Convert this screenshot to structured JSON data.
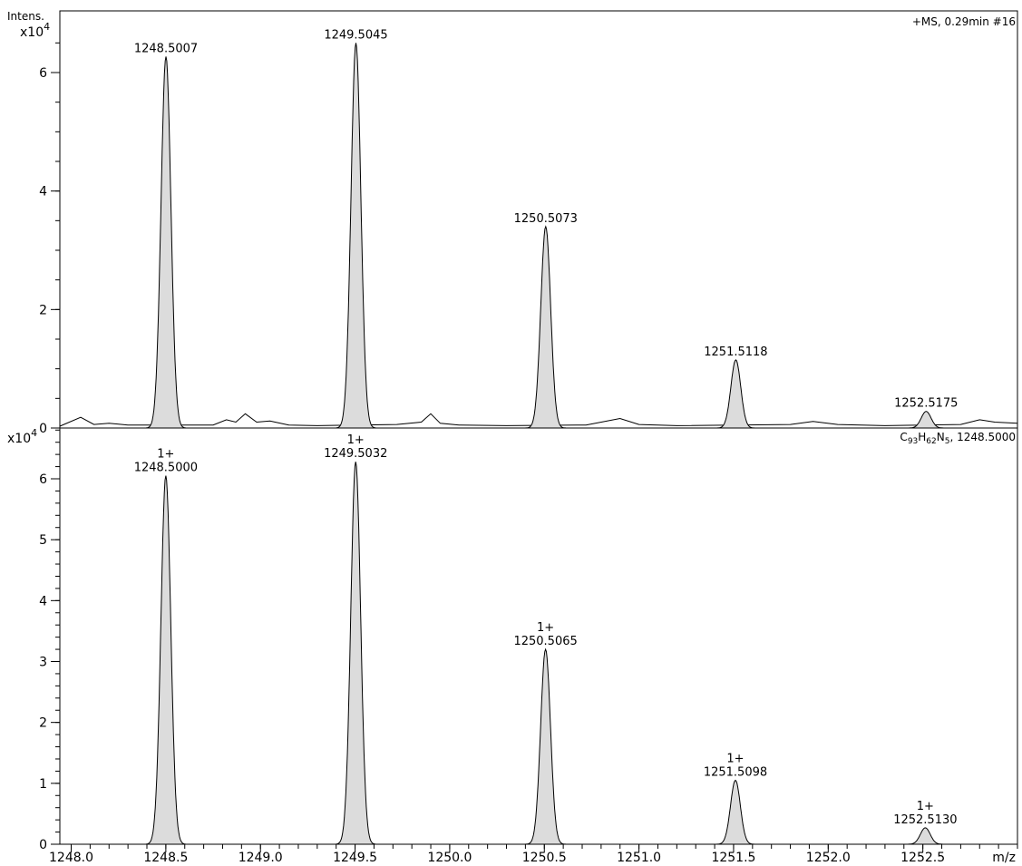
{
  "header": {
    "y_title": "Intens.",
    "scale_top": "x10",
    "scale_exp_top": "4",
    "scale_bottom": "x10",
    "scale_exp_bottom": "4",
    "info_top": "+MS, 0.29min #16",
    "info_bottom_formula": [
      {
        "text": "C",
        "sub": false
      },
      {
        "text": "93",
        "sub": true
      },
      {
        "text": "H",
        "sub": false
      },
      {
        "text": "62",
        "sub": true
      },
      {
        "text": "N",
        "sub": false
      },
      {
        "text": "5",
        "sub": true
      },
      {
        "text": ", 1248.5000",
        "sub": false
      }
    ],
    "x_unit": "m/z"
  },
  "colors": {
    "fill": "#dcdcdc",
    "stroke": "#000000",
    "axis": "#000000"
  },
  "chart_data": [
    {
      "type": "area",
      "name": "experimental",
      "xlim": [
        1247.94,
        1253.0
      ],
      "ylim": [
        0,
        6.95
      ],
      "y_unit_multiplier": "x10^4",
      "y_ticks": [
        0,
        2,
        4,
        6
      ],
      "y_minor_step": 0.5,
      "peaks": [
        {
          "mz": 1248.5007,
          "intensity": 6.27,
          "label": "1248.5007",
          "charge": ""
        },
        {
          "mz": 1249.5045,
          "intensity": 6.5,
          "label": "1249.5045",
          "charge": ""
        },
        {
          "mz": 1250.5073,
          "intensity": 3.4,
          "label": "1250.5073",
          "charge": ""
        },
        {
          "mz": 1251.5118,
          "intensity": 1.15,
          "label": "1251.5118",
          "charge": ""
        },
        {
          "mz": 1252.5175,
          "intensity": 0.28,
          "label": "1252.5175",
          "charge": ""
        }
      ],
      "noise": [
        [
          1247.94,
          0.03
        ],
        [
          1248.05,
          0.18
        ],
        [
          1248.12,
          0.06
        ],
        [
          1248.2,
          0.08
        ],
        [
          1248.3,
          0.05
        ],
        [
          1248.75,
          0.05
        ],
        [
          1248.82,
          0.14
        ],
        [
          1248.87,
          0.1
        ],
        [
          1248.92,
          0.24
        ],
        [
          1248.98,
          0.1
        ],
        [
          1249.05,
          0.12
        ],
        [
          1249.15,
          0.05
        ],
        [
          1249.3,
          0.04
        ],
        [
          1249.72,
          0.06
        ],
        [
          1249.85,
          0.1
        ],
        [
          1249.9,
          0.24
        ],
        [
          1249.95,
          0.08
        ],
        [
          1250.05,
          0.05
        ],
        [
          1250.3,
          0.04
        ],
        [
          1250.72,
          0.05
        ],
        [
          1250.9,
          0.16
        ],
        [
          1251.0,
          0.06
        ],
        [
          1251.2,
          0.04
        ],
        [
          1251.8,
          0.06
        ],
        [
          1251.92,
          0.11
        ],
        [
          1252.05,
          0.06
        ],
        [
          1252.3,
          0.04
        ],
        [
          1252.7,
          0.06
        ],
        [
          1252.8,
          0.14
        ],
        [
          1252.88,
          0.1
        ],
        [
          1253.0,
          0.08
        ]
      ]
    },
    {
      "type": "area",
      "name": "simulated",
      "xlim": [
        1247.94,
        1253.0
      ],
      "ylim": [
        0,
        6.85
      ],
      "y_unit_multiplier": "x10^4",
      "y_ticks": [
        0,
        1,
        2,
        3,
        4,
        5,
        6
      ],
      "y_minor_step": 0.2,
      "x_ticks": [
        1248.0,
        1248.5,
        1249.0,
        1249.5,
        1250.0,
        1250.5,
        1251.0,
        1251.5,
        1252.0,
        1252.5
      ],
      "x_tick_labels": [
        "1248.0",
        "1248.5",
        "1249.0",
        "1249.5",
        "1250.0",
        "1250.5",
        "1251.0",
        "1251.5",
        "1252.0",
        "1252.5"
      ],
      "x_minor_step": 0.1,
      "peaks": [
        {
          "mz": 1248.5,
          "intensity": 6.05,
          "label": "1248.5000",
          "charge": "1+"
        },
        {
          "mz": 1249.5032,
          "intensity": 6.28,
          "label": "1249.5032",
          "charge": "1+"
        },
        {
          "mz": 1250.5065,
          "intensity": 3.2,
          "label": "1250.5065",
          "charge": "1+"
        },
        {
          "mz": 1251.5098,
          "intensity": 1.05,
          "label": "1251.5098",
          "charge": "1+"
        },
        {
          "mz": 1252.513,
          "intensity": 0.27,
          "label": "1252.5130",
          "charge": "1+"
        }
      ]
    }
  ]
}
